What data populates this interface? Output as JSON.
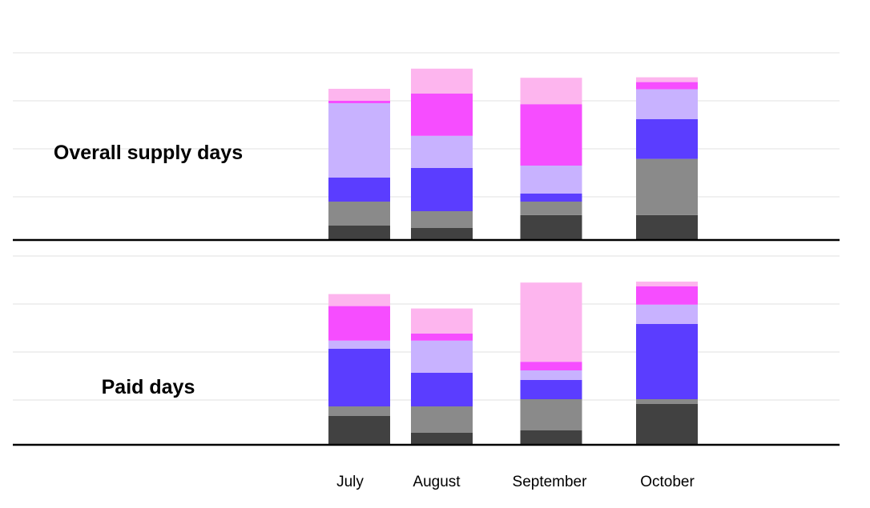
{
  "chart_data": {
    "type": "bar",
    "stacked": true,
    "grid": true,
    "legend": "none",
    "categories": [
      "July",
      "August",
      "September",
      "October"
    ],
    "colors": [
      "#414141",
      "#8a8a8a",
      "#5b3dff",
      "#c8b2ff",
      "#f64dff",
      "#fdb5ee"
    ],
    "panels": [
      {
        "label": "Overall supply days",
        "ylim": [
          0,
          4
        ],
        "segments": [
          [
            0.3,
            0.5,
            0.5,
            1.55,
            0.05,
            0.25
          ],
          [
            0.25,
            0.35,
            0.9,
            0.67,
            0.88,
            0.52
          ],
          [
            0.52,
            0.28,
            0.17,
            0.58,
            1.28,
            0.55
          ],
          [
            0.52,
            1.17,
            0.83,
            0.62,
            0.15,
            0.1
          ]
        ]
      },
      {
        "label": "Paid days",
        "ylim": [
          0,
          4
        ],
        "segments": [
          [
            0.6,
            0.2,
            1.2,
            0.17,
            0.72,
            0.25
          ],
          [
            0.25,
            0.55,
            0.7,
            0.67,
            0.15,
            0.52
          ],
          [
            0.3,
            0.65,
            0.4,
            0.2,
            0.18,
            1.65
          ],
          [
            0.85,
            0.1,
            1.57,
            0.4,
            0.38,
            0.1
          ]
        ]
      }
    ]
  }
}
